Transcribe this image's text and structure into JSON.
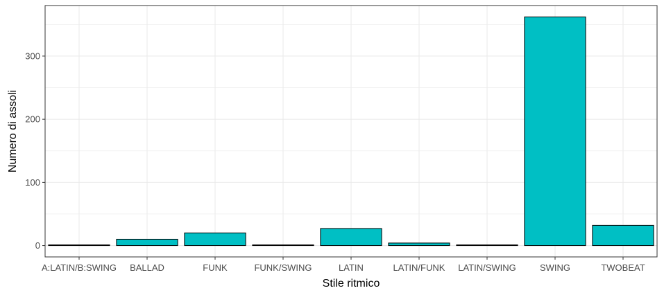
{
  "chart_data": {
    "type": "bar",
    "categories": [
      "A:LATIN/B:SWING",
      "BALLAD",
      "FUNK",
      "FUNK/SWING",
      "LATIN",
      "LATIN/FUNK",
      "LATIN/SWING",
      "SWING",
      "TWOBEAT"
    ],
    "values": [
      1,
      10,
      20,
      1,
      27,
      4,
      1,
      362,
      32
    ],
    "xlabel": "Stile ritmico",
    "ylabel": "Numero di assoli",
    "ylim": [
      -18,
      380
    ],
    "yticks": [
      0,
      100,
      200,
      300
    ],
    "grid": true,
    "colors": {
      "bar_fill": "#00BFC4",
      "bar_stroke": "#000000",
      "grid": "#ebebeb",
      "panel_border": "#333333"
    }
  }
}
